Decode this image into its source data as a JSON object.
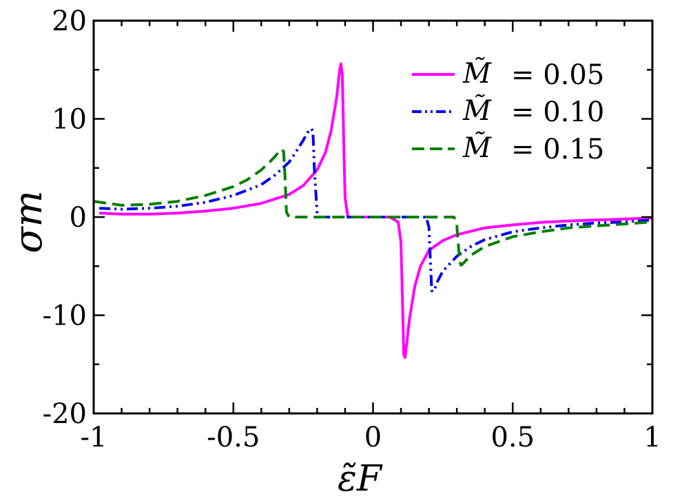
{
  "chart_data": {
    "type": "line",
    "xlabel": "ε̃F",
    "ylabel": "σm",
    "xlim": [
      -1,
      1
    ],
    "ylim": [
      -20,
      20
    ],
    "x_ticks": [
      -1,
      -0.5,
      0,
      0.5,
      1
    ],
    "x_tick_labels": [
      "-1",
      "-0.5",
      "0",
      "0.5",
      "1"
    ],
    "y_ticks": [
      -20,
      -10,
      0,
      10,
      20
    ],
    "y_tick_labels": [
      "-20",
      "-10",
      "0",
      "10",
      "20"
    ],
    "grid": false,
    "legend_position": "top-right",
    "series": [
      {
        "name": "M̃ = 0.05",
        "legend_symbol": "M̃",
        "legend_value": "=  0.05",
        "color": "#ff00ff",
        "dash": "solid",
        "x": [
          -0.98,
          -0.9,
          -0.8,
          -0.7,
          -0.6,
          -0.5,
          -0.4,
          -0.3,
          -0.25,
          -0.2,
          -0.17,
          -0.15,
          -0.13,
          -0.12,
          -0.115,
          -0.11,
          -0.105,
          -0.1,
          -0.09,
          -0.06,
          -0.03,
          0,
          0.03,
          0.06,
          0.09,
          0.1,
          0.105,
          0.11,
          0.115,
          0.12,
          0.13,
          0.15,
          0.17,
          0.2,
          0.25,
          0.3,
          0.4,
          0.5,
          0.6,
          0.7,
          0.8,
          0.9,
          1.0
        ],
        "y": [
          0.4,
          0.3,
          0.3,
          0.4,
          0.6,
          0.9,
          1.4,
          2.3,
          3.2,
          4.8,
          6.6,
          8.8,
          12.2,
          14.8,
          15.6,
          14.5,
          8.0,
          2.0,
          0,
          0,
          0,
          0,
          0,
          0,
          -0.5,
          -2.5,
          -8.0,
          -14.0,
          -14.3,
          -13.0,
          -10.5,
          -7.0,
          -5.0,
          -3.4,
          -2.4,
          -1.8,
          -1.1,
          -0.8,
          -0.55,
          -0.4,
          -0.3,
          -0.2,
          -0.1
        ]
      },
      {
        "name": "M̃ = 0.10",
        "legend_symbol": "M̃",
        "legend_value": "= 0.10",
        "color": "#0000ee",
        "dash": "dash-dot-dot",
        "x": [
          -0.98,
          -0.9,
          -0.8,
          -0.7,
          -0.6,
          -0.5,
          -0.4,
          -0.35,
          -0.3,
          -0.27,
          -0.25,
          -0.23,
          -0.22,
          -0.215,
          -0.21,
          -0.2,
          -0.19,
          -0.1,
          0,
          0.1,
          0.19,
          0.2,
          0.21,
          0.215,
          0.22,
          0.23,
          0.25,
          0.3,
          0.35,
          0.4,
          0.5,
          0.6,
          0.7,
          0.8,
          0.9,
          1.0
        ],
        "y": [
          0.9,
          0.8,
          0.9,
          1.1,
          1.5,
          2.2,
          3.3,
          4.3,
          5.6,
          6.9,
          7.8,
          8.8,
          9.0,
          8.7,
          5.0,
          0.3,
          0,
          0,
          0,
          0,
          0,
          -1.0,
          -7.5,
          -7.6,
          -7.4,
          -6.6,
          -5.5,
          -4.0,
          -3.0,
          -2.3,
          -1.5,
          -1.1,
          -0.8,
          -0.6,
          -0.5,
          -0.3
        ]
      },
      {
        "name": "M̃ = 0.15",
        "legend_symbol": "M̃",
        "legend_value": "=  0.15",
        "color": "#008000",
        "dash": "dashed",
        "x": [
          -1.0,
          -0.9,
          -0.8,
          -0.7,
          -0.6,
          -0.5,
          -0.45,
          -0.4,
          -0.37,
          -0.35,
          -0.33,
          -0.32,
          -0.315,
          -0.31,
          -0.3,
          -0.29,
          -0.2,
          -0.1,
          0,
          0.1,
          0.2,
          0.29,
          0.3,
          0.31,
          0.315,
          0.32,
          0.33,
          0.35,
          0.4,
          0.5,
          0.6,
          0.7,
          0.8,
          0.9,
          1.0
        ],
        "y": [
          1.6,
          1.2,
          1.3,
          1.6,
          2.2,
          3.1,
          3.8,
          4.8,
          5.6,
          6.2,
          6.9,
          6.7,
          4.0,
          0.5,
          0,
          0,
          0,
          0,
          0,
          0,
          0,
          0,
          -0.8,
          -4.5,
          -4.9,
          -4.8,
          -4.5,
          -3.9,
          -3.0,
          -2.0,
          -1.5,
          -1.1,
          -0.9,
          -0.7,
          -0.5
        ]
      }
    ]
  }
}
